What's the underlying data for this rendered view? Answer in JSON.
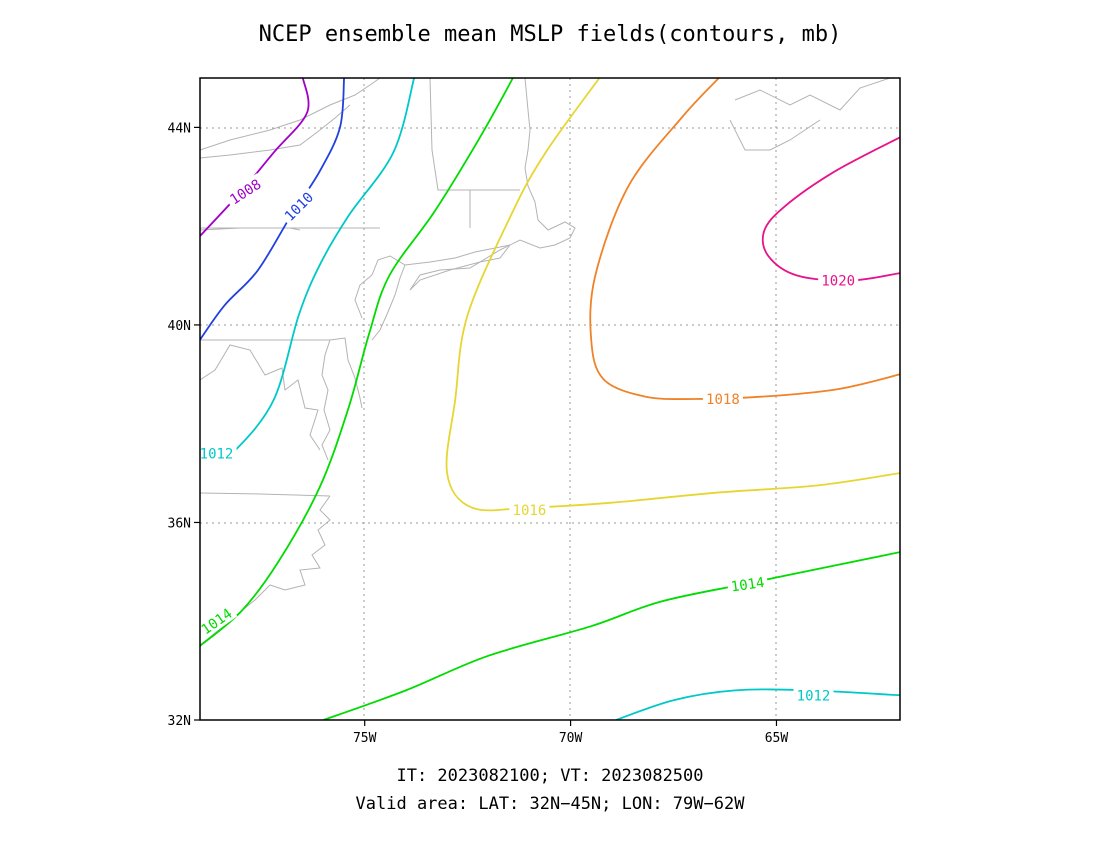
{
  "title": "NCEP ensemble mean MSLP fields(contours, mb)",
  "footer": {
    "line1": "IT: 2023082100; VT: 2023082500",
    "line2": "Valid area: LAT: 32N−45N; LON: 79W−62W"
  },
  "map": {
    "lon_range": [
      -79,
      -62
    ],
    "lat_range": [
      32,
      45
    ],
    "grid_lines": "dotted",
    "coastline_color": "#b3b3b3"
  },
  "axes": {
    "lat_ticks": [
      {
        "value": 32,
        "label": "32N"
      },
      {
        "value": 36,
        "label": "36N"
      },
      {
        "value": 40,
        "label": "40N"
      },
      {
        "value": 44,
        "label": "44N"
      }
    ],
    "lon_ticks": [
      {
        "value": -75,
        "label": "75W"
      },
      {
        "value": -70,
        "label": "70W"
      },
      {
        "value": -65,
        "label": "65W"
      }
    ]
  },
  "contours": [
    {
      "id": "c1008",
      "value": "1008",
      "color": "#a000c8",
      "points": [
        [
          -76.5,
          45
        ],
        [
          -76.4,
          44.3
        ],
        [
          -77.2,
          43.5
        ],
        [
          -78,
          42.7
        ],
        [
          -79,
          41.8
        ]
      ],
      "labels": [
        {
          "text": "1008",
          "lon": -77.9,
          "lat": 42.7,
          "angle": -33
        }
      ]
    },
    {
      "id": "c1010",
      "value": "1010",
      "color": "#2040e0",
      "points": [
        [
          -75.5,
          45
        ],
        [
          -75.6,
          44
        ],
        [
          -76.1,
          43.1
        ],
        [
          -76.8,
          42.2
        ],
        [
          -77.6,
          41.1
        ],
        [
          -78.4,
          40.4
        ],
        [
          -79,
          39.7
        ]
      ],
      "labels": [
        {
          "text": "1010",
          "lon": -76.6,
          "lat": 42.4,
          "angle": -45
        }
      ]
    },
    {
      "id": "c1012a",
      "value": "1012",
      "color": "#00c8c8",
      "points": [
        [
          -73.8,
          45
        ],
        [
          -74.3,
          43.5
        ],
        [
          -75.4,
          42.2
        ],
        [
          -76.1,
          41.2
        ],
        [
          -76.6,
          40.2
        ],
        [
          -77.2,
          38.5
        ],
        [
          -78.1,
          37.5
        ],
        [
          -78.5,
          37.4
        ]
      ],
      "labels": [
        {
          "text": "1012",
          "lon": -78.6,
          "lat": 37.4,
          "angle": 0
        }
      ]
    },
    {
      "id": "c1012b",
      "value": "1012",
      "color": "#00c8c8",
      "points": [
        [
          -68.9,
          32
        ],
        [
          -67.5,
          32.4
        ],
        [
          -66,
          32.6
        ],
        [
          -64.2,
          32.6
        ],
        [
          -62,
          32.5
        ]
      ],
      "labels": [
        {
          "text": "1012",
          "lon": -64.1,
          "lat": 32.5,
          "angle": 0
        }
      ]
    },
    {
      "id": "c1014a",
      "value": "1014",
      "color": "#00dc00",
      "points": [
        [
          -71.4,
          45
        ],
        [
          -72.2,
          43.8
        ],
        [
          -73.3,
          42.3
        ],
        [
          -74.4,
          41
        ],
        [
          -74.9,
          39.8
        ],
        [
          -75.4,
          38.3
        ],
        [
          -76.1,
          36.7
        ],
        [
          -77.1,
          35.2
        ],
        [
          -78,
          34.2
        ],
        [
          -79,
          33.5
        ]
      ],
      "labels": [
        {
          "text": "1014",
          "lon": -78.6,
          "lat": 34,
          "angle": -35
        }
      ]
    },
    {
      "id": "c1014b",
      "value": "1014",
      "color": "#00dc00",
      "points": [
        [
          -76,
          32
        ],
        [
          -74,
          32.6
        ],
        [
          -72,
          33.3
        ],
        [
          -69.5,
          33.9
        ],
        [
          -67.8,
          34.4
        ],
        [
          -65.5,
          34.8
        ],
        [
          -62,
          35.4
        ]
      ],
      "labels": [
        {
          "text": "1014",
          "lon": -65.7,
          "lat": 34.75,
          "angle": -8
        }
      ]
    },
    {
      "id": "c1016",
      "value": "1016",
      "color": "#e6d632",
      "points": [
        [
          -69.3,
          45
        ],
        [
          -70.6,
          43.5
        ],
        [
          -71.4,
          42.3
        ],
        [
          -72.5,
          40.2
        ],
        [
          -72.8,
          38.5
        ],
        [
          -73,
          37
        ],
        [
          -72.4,
          36.3
        ],
        [
          -71,
          36.3
        ],
        [
          -69,
          36.4
        ],
        [
          -66.5,
          36.6
        ],
        [
          -64,
          36.75
        ],
        [
          -62,
          37
        ]
      ],
      "labels": [
        {
          "text": "1016",
          "lon": -71,
          "lat": 36.25,
          "angle": 0
        }
      ]
    },
    {
      "id": "c1018",
      "value": "1018",
      "color": "#f08228",
      "points": [
        [
          -66.4,
          45
        ],
        [
          -67.3,
          44.2
        ],
        [
          -68.6,
          42.8
        ],
        [
          -69.4,
          41
        ],
        [
          -69.5,
          39.7
        ],
        [
          -69.2,
          38.9
        ],
        [
          -68.2,
          38.55
        ],
        [
          -67,
          38.5
        ],
        [
          -65.3,
          38.55
        ],
        [
          -63.5,
          38.7
        ],
        [
          -62,
          39
        ]
      ],
      "labels": [
        {
          "text": "1018",
          "lon": -66.3,
          "lat": 38.5,
          "angle": 0
        }
      ]
    },
    {
      "id": "c1020",
      "value": "1020",
      "color": "#e6148c",
      "points": [
        [
          -62,
          43.8
        ],
        [
          -63.6,
          43.1
        ],
        [
          -64.8,
          42.4
        ],
        [
          -65.3,
          41.9
        ],
        [
          -65.2,
          41.4
        ],
        [
          -64.5,
          41
        ],
        [
          -63.2,
          40.9
        ],
        [
          -62,
          41.05
        ]
      ],
      "labels": [
        {
          "text": "1020",
          "lon": -63.5,
          "lat": 40.9,
          "angle": 0
        }
      ]
    }
  ]
}
